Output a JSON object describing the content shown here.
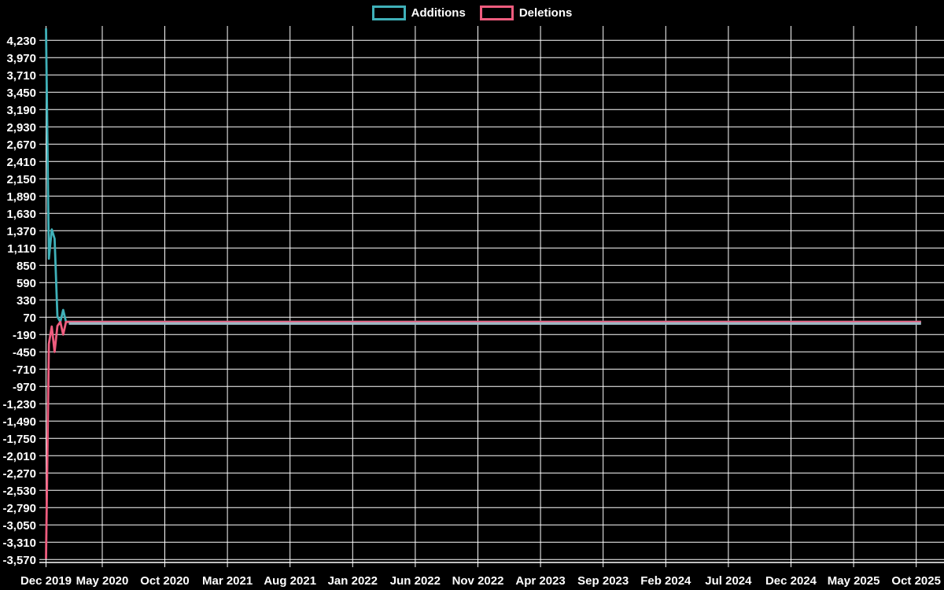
{
  "legend": {
    "items": [
      {
        "label": "Additions",
        "color": "#3fb0b8"
      },
      {
        "label": "Deletions",
        "color": "#ee5c7e"
      }
    ]
  },
  "colors": {
    "background": "#000000",
    "grid": "#ffffff",
    "axis": "#ffffff",
    "tick_text": "#ffffff",
    "additions": "#3fb0b8",
    "deletions": "#ee5c7e",
    "overlap_flat_line": "#9fb9c5"
  },
  "chart_data": {
    "type": "line",
    "grid": true,
    "legend_position": "top-center",
    "x_axis": {
      "unit": "week",
      "tick_labels": [
        "Dec 2019",
        "May 2020",
        "Oct 2020",
        "Mar 2021",
        "Aug 2021",
        "Jan 2022",
        "Jun 2022",
        "Nov 2022",
        "Apr 2023",
        "Sep 2023",
        "Feb 2024",
        "Jul 2024",
        "Dec 2024",
        "May 2025",
        "Oct 2025"
      ]
    },
    "y_axis": {
      "tick_values": [
        4230,
        3970,
        3710,
        3450,
        3190,
        2930,
        2670,
        2410,
        2150,
        1890,
        1630,
        1370,
        1110,
        850,
        590,
        330,
        70,
        -190,
        -450,
        -710,
        -970,
        -1230,
        -1490,
        -1750,
        -2010,
        -2270,
        -2530,
        -2790,
        -3050,
        -3310,
        -3570
      ],
      "tick_label_format": "thousands-comma"
    },
    "ylim": [
      -3700,
      4460
    ],
    "series": [
      {
        "name": "Additions",
        "color": "#3fb0b8",
        "first_weeks_values": [
          4410,
          950,
          1390,
          1250,
          80,
          0,
          180,
          0
        ],
        "rest_value": 0,
        "weeks_total": 307
      },
      {
        "name": "Deletions",
        "color": "#ee5c7e",
        "first_weeks_values": [
          -3560,
          -330,
          -70,
          -450,
          -60,
          0,
          -190,
          0
        ],
        "rest_value": 0,
        "weeks_total": 307
      }
    ],
    "overlap_note": "Both series are 0 from week 8 onward; overlapping lines render as a single steel-blue flat line at y=0"
  }
}
